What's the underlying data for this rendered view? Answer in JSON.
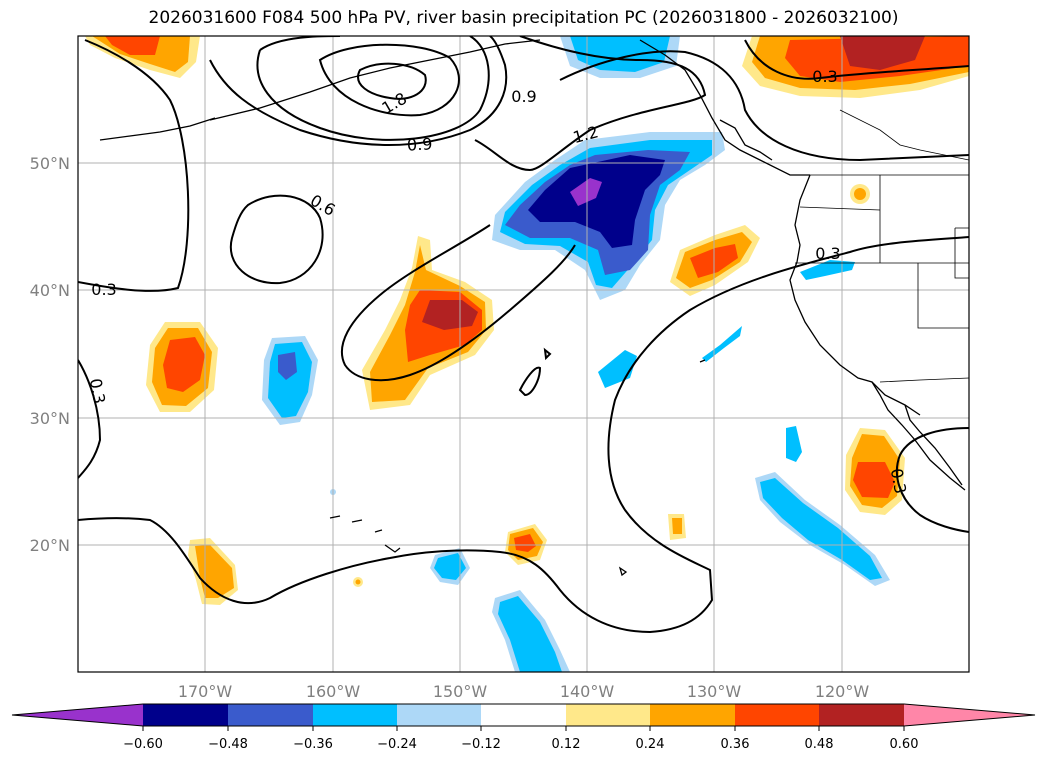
{
  "title": "2026031600 F084 500 hPa PV, river basin precipitation PC (2026031800 - 2026032100)",
  "axes": {
    "lat_labels": [
      "50°N",
      "40°N",
      "30°N",
      "20°N"
    ],
    "lon_labels": [
      "170°W",
      "160°W",
      "150°W",
      "140°W",
      "130°W",
      "120°W"
    ]
  },
  "contour_labels": [
    "1.8",
    "0.9",
    "0.9",
    "1.2",
    "0.6",
    "0.3",
    "0.3",
    "0.3",
    "0.3",
    "0.3"
  ],
  "colorbar": {
    "ticks": [
      "−0.60",
      "−0.48",
      "−0.36",
      "−0.24",
      "−0.12",
      "0.12",
      "0.24",
      "0.36",
      "0.48",
      "0.60"
    ],
    "colors": {
      "under": "#9932cc",
      "c1": "#00008b",
      "c2": "#3a5bcc",
      "c3": "#00bfff",
      "c4": "#add8f7",
      "c5": "#ffffff",
      "c6": "#ffe88a",
      "c7": "#ffa500",
      "c8": "#ff4500",
      "c9": "#b22222",
      "over": "#ff86a8"
    }
  }
}
